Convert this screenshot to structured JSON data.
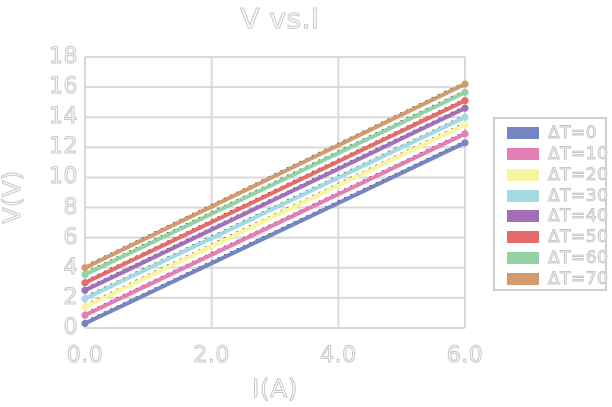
{
  "chart_data": {
    "type": "line",
    "title": "V vs.I",
    "xlabel": "I(A)",
    "ylabel": "V(V)",
    "x": [
      0,
      6
    ],
    "xlim": [
      0,
      6
    ],
    "ylim": [
      0,
      18
    ],
    "xticks": [
      0,
      2,
      4,
      6
    ],
    "xtick_labels": [
      "0.0",
      "2.0",
      "4.0",
      "6.0"
    ],
    "yticks": [
      0,
      2,
      4,
      6,
      8,
      10,
      12,
      14,
      16,
      18
    ],
    "ytick_labels": [
      "0",
      "2",
      "4",
      "6",
      "8",
      "10",
      "12",
      "14",
      "16",
      "18"
    ],
    "grid": true,
    "legend_position": "right-outside",
    "grid_color": "#d9d9d9",
    "text_outline_color": "#c6c6c6",
    "trendline_style": "black-dashed",
    "series": [
      {
        "name": "ΔT=0",
        "color": "#7585c1",
        "values": [
          0.3,
          12.3
        ]
      },
      {
        "name": "ΔT=10",
        "color": "#e57eb3",
        "values": [
          0.85,
          12.9
        ]
      },
      {
        "name": "ΔT=20",
        "color": "#f8f4a0",
        "values": [
          1.4,
          13.5
        ]
      },
      {
        "name": "ΔT=30",
        "color": "#a3d9e1",
        "values": [
          1.95,
          14.0
        ]
      },
      {
        "name": "ΔT=40",
        "color": "#a36fb9",
        "values": [
          2.5,
          14.6
        ]
      },
      {
        "name": "ΔT=50",
        "color": "#e66c6c",
        "values": [
          3.0,
          15.1
        ]
      },
      {
        "name": "ΔT=60",
        "color": "#94d2a5",
        "values": [
          3.55,
          15.65
        ]
      },
      {
        "name": "ΔT=70",
        "color": "#d19b6e",
        "values": [
          4.0,
          16.2
        ]
      }
    ]
  }
}
